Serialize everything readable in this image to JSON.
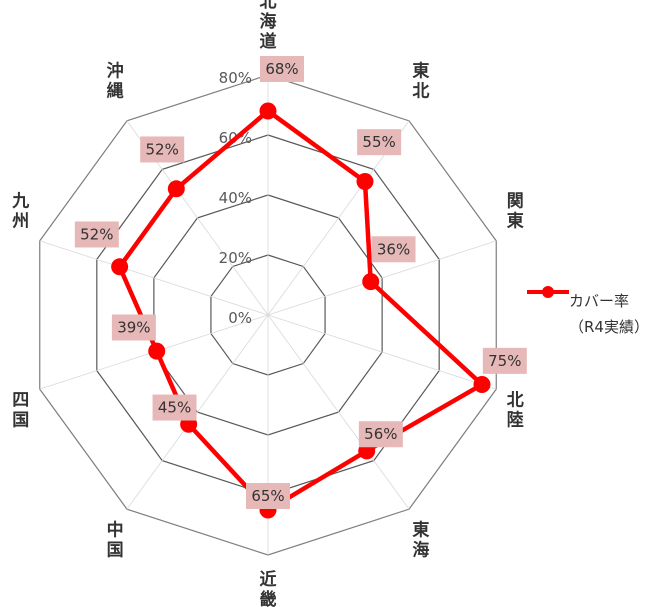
{
  "chart_data": {
    "type": "radar",
    "categories": [
      "北海道",
      "東北",
      "関東",
      "北陸",
      "東海",
      "近畿",
      "中国",
      "四国",
      "九州",
      "沖縄"
    ],
    "series": [
      {
        "name": "カバー率（R4実績）",
        "legend_line1": "カバー率",
        "legend_line2": "（R4実績）",
        "values": [
          68,
          55,
          36,
          75,
          56,
          65,
          45,
          39,
          52,
          52
        ],
        "labels": [
          "68%",
          "55%",
          "36%",
          "75%",
          "56%",
          "65%",
          "45%",
          "39%",
          "52%",
          "52%"
        ]
      }
    ],
    "rlim": [
      0,
      80
    ],
    "rticks": [
      0,
      20,
      40,
      60,
      80
    ],
    "rtick_labels": [
      "0%",
      "20%",
      "40%",
      "60%",
      "80%"
    ],
    "grid": true,
    "legend_position": "right"
  },
  "colors": {
    "series": "#ff0000",
    "label_bg": "#e6b8b7",
    "grid": "#595959",
    "outer_grid": "#7f7f7f",
    "text": "#333333",
    "tick_text": "#595959"
  }
}
